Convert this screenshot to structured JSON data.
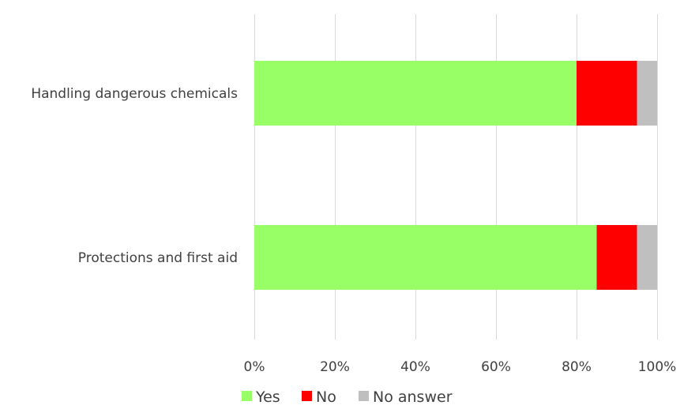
{
  "chart_data": {
    "type": "bar",
    "orientation": "horizontal",
    "stacked": true,
    "categories": [
      "Handling dangerous chemicals",
      "Protections and first aid"
    ],
    "series": [
      {
        "name": "Yes",
        "values": [
          80,
          85
        ],
        "color": "#99ff66"
      },
      {
        "name": "No",
        "values": [
          15,
          10
        ],
        "color": "#ff0000"
      },
      {
        "name": "No answer",
        "values": [
          5,
          5
        ],
        "color": "#bfbfbf"
      }
    ],
    "xlim": [
      0,
      100
    ],
    "x_ticks": [
      "0%",
      "20%",
      "40%",
      "60%",
      "80%",
      "100%"
    ],
    "grid": true,
    "legend_position": "bottom"
  }
}
